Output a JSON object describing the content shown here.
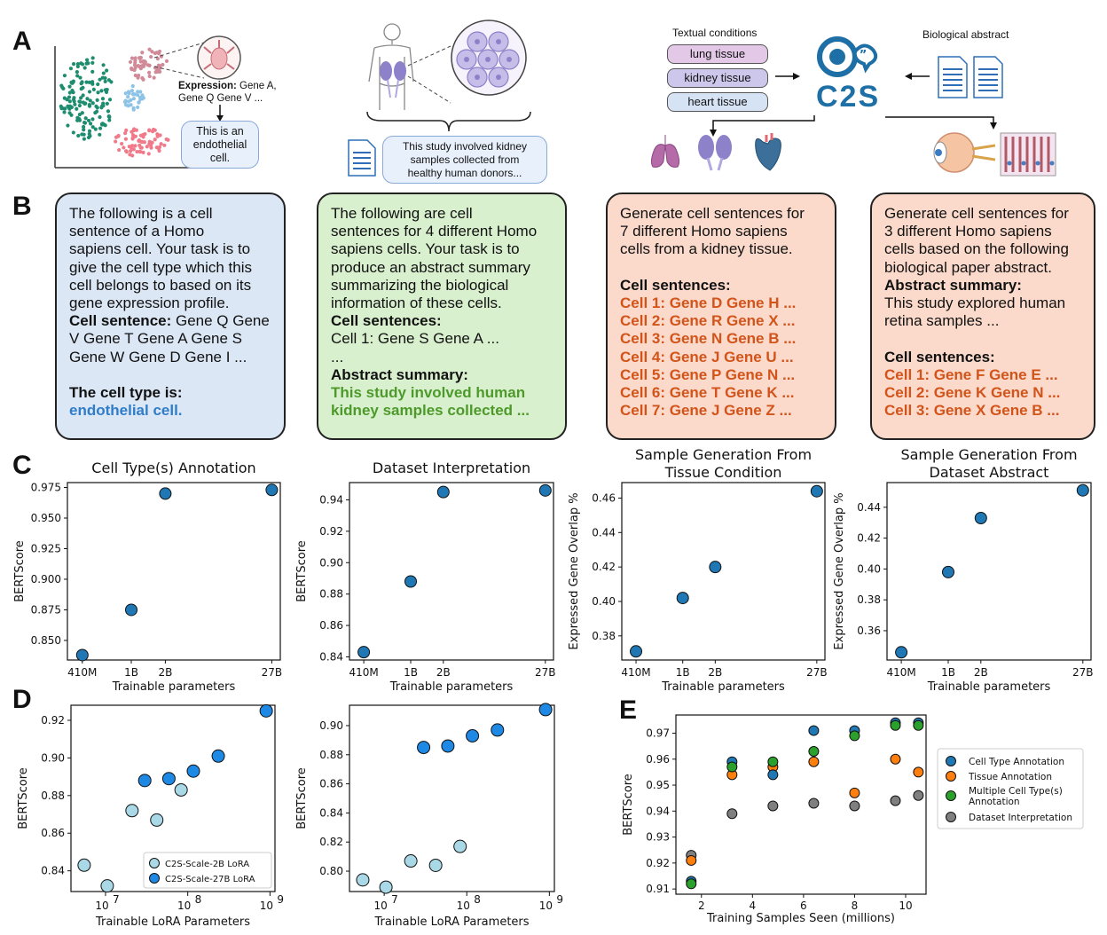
{
  "panel_letters": {
    "a": "A",
    "b": "B",
    "c": "C",
    "d": "D",
    "e": "E"
  },
  "panel_a": {
    "expression_bold": "Expression:",
    "expression_rest_1": " Gene A,",
    "expression_rest_2": "Gene Q Gene V ...",
    "cell_bubble": [
      "This is an",
      "endothelial",
      "cell."
    ],
    "study_bubble": [
      "This study involved kidney",
      "samples collected from",
      "healthy human donors..."
    ],
    "textual_conditions": "Textual conditions",
    "conditions": [
      "lung tissue",
      "kidney tissue",
      "heart tissue"
    ],
    "biological_abstract": "Biological abstract",
    "logo_text": "C2S"
  },
  "panel_b": {
    "card1": {
      "lines": [
        "The following is a cell",
        "sentence of a Homo",
        "sapiens cell. Your task is to",
        "give the cell type which this",
        "cell belongs to based on its",
        "gene expression profile."
      ],
      "cs_bold": "Cell sentence:",
      "cs_rest": " Gene Q Gene",
      "cs_lines": [
        "V Gene T Gene A Gene S",
        "Gene W Gene D Gene I ..."
      ],
      "answer_label": "The cell type is:",
      "answer": "endothelial cell."
    },
    "card2": {
      "lines": [
        "The following are cell",
        "sentences for 4 different Homo",
        "sapiens cells. Your task is to",
        "produce an abstract summary",
        "summarizing the biological",
        "information of these cells."
      ],
      "cs_label": "Cell sentences:",
      "cs_lines": [
        "Cell 1: Gene S Gene A ...",
        "..."
      ],
      "answer_label": "Abstract summary:",
      "answer": [
        "This study involved human",
        "kidney samples collected ..."
      ]
    },
    "card3": {
      "lines": [
        "Generate cell sentences for",
        "7 different Homo sapiens",
        "cells from a kidney tissue."
      ],
      "cs_label": "Cell sentences:",
      "cells": [
        "Cell 1: Gene D Gene H ...",
        "Cell 2: Gene R Gene X ...",
        "Cell 3: Gene N Gene B ...",
        "Cell 4: Gene J Gene U ...",
        "Cell 5: Gene P Gene N ...",
        "Cell 6: Gene T Gene K ...",
        "Cell 7: Gene J Gene Z ..."
      ]
    },
    "card4": {
      "lines": [
        "Generate cell sentences for",
        "3 different Homo sapiens",
        "cells based on the following",
        "biological paper abstract."
      ],
      "abs_label": "Abstract summary:",
      "abs_lines": [
        "This study explored human",
        "retina samples ..."
      ],
      "cs_label": "Cell sentences:",
      "cells": [
        "Cell 1: Gene F Gene E ...",
        "Cell 2: Gene K Gene N ...",
        "Cell 3: Gene X Gene B ..."
      ]
    }
  },
  "colors": {
    "blue_point": "#1f77b4",
    "orange": "#ff7f0e",
    "green": "#2ca02c",
    "gray": "#7f7f7f",
    "light_blue": "#a9d8e6",
    "bright_blue": "#1e88e5"
  },
  "chart_data": [
    {
      "id": "c1",
      "type": "scatter",
      "title": "Cell Type(s) Annotation",
      "xlabel": "Trainable parameters",
      "ylabel": "BERTScore",
      "categories": [
        "410M",
        "1B",
        "2B",
        "27B"
      ],
      "values": [
        0.838,
        0.875,
        0.97,
        0.973
      ],
      "yticks": [
        "0.850",
        "0.875",
        "0.900",
        "0.925",
        "0.950",
        "0.975"
      ],
      "ylim": [
        0.834,
        0.979
      ]
    },
    {
      "id": "c2",
      "type": "scatter",
      "title": "Dataset Interpretation",
      "xlabel": "Trainable parameters",
      "ylabel": "BERTScore",
      "categories": [
        "410M",
        "1B",
        "2B",
        "27B"
      ],
      "values": [
        0.843,
        0.888,
        0.945,
        0.946
      ],
      "yticks": [
        "0.84",
        "0.86",
        "0.88",
        "0.90",
        "0.92",
        "0.94"
      ],
      "ylim": [
        0.838,
        0.951
      ]
    },
    {
      "id": "c3",
      "type": "scatter",
      "title": [
        "Sample Generation From",
        "Tissue Condition"
      ],
      "xlabel": "Trainable parameters",
      "ylabel": "Expressed Gene Overlap %",
      "categories": [
        "410M",
        "1B",
        "2B",
        "27B"
      ],
      "values": [
        0.371,
        0.402,
        0.42,
        0.464
      ],
      "yticks": [
        "0.38",
        "0.40",
        "0.42",
        "0.44",
        "0.46"
      ],
      "ylim": [
        0.366,
        0.469
      ]
    },
    {
      "id": "c4",
      "type": "scatter",
      "title": [
        "Sample Generation From",
        "Dataset Abstract"
      ],
      "xlabel": "Trainable parameters",
      "ylabel": "Expressed Gene Overlap %",
      "categories": [
        "410M",
        "1B",
        "2B",
        "27B"
      ],
      "values": [
        0.346,
        0.398,
        0.433,
        0.451
      ],
      "yticks": [
        "0.36",
        "0.38",
        "0.40",
        "0.42",
        "0.44"
      ],
      "ylim": [
        0.341,
        0.456
      ]
    },
    {
      "id": "d1",
      "type": "scatter",
      "xlabel": "Trainable LoRA Parameters",
      "ylabel": "BERTScore",
      "xscale": "log",
      "xlim": [
        3800000.0,
        1150000000.0
      ],
      "xticks": [
        "7",
        "8",
        "9"
      ],
      "yticks": [
        "0.84",
        "0.86",
        "0.88",
        "0.90",
        "0.92"
      ],
      "ylim": [
        0.829,
        0.928
      ],
      "series": [
        {
          "name": "C2S-Scale-2B LoRA",
          "points": [
            [
              5500000.0,
              0.843
            ],
            [
              10500000.0,
              0.832
            ],
            [
              21000000.0,
              0.872
            ],
            [
              42000000.0,
              0.867
            ],
            [
              83000000.0,
              0.883
            ]
          ]
        },
        {
          "name": "C2S-Scale-27B LoRA",
          "points": [
            [
              30000000.0,
              0.888
            ],
            [
              59000000.0,
              0.889
            ],
            [
              117000000.0,
              0.893
            ],
            [
              235000000.0,
              0.901
            ],
            [
              900000000.0,
              0.925
            ]
          ]
        }
      ],
      "legend": "bottom-right"
    },
    {
      "id": "d2",
      "type": "scatter",
      "xlabel": "Trainable LoRA Parameters",
      "ylabel": "BERTScore",
      "xscale": "log",
      "xlim": [
        3800000.0,
        1150000000.0
      ],
      "xticks": [
        "7",
        "8",
        "9"
      ],
      "yticks": [
        "0.80",
        "0.82",
        "0.84",
        "0.86",
        "0.88",
        "0.90"
      ],
      "ylim": [
        0.786,
        0.914
      ],
      "series": [
        {
          "name": "C2S-Scale-2B LoRA",
          "points": [
            [
              5500000.0,
              0.794
            ],
            [
              10500000.0,
              0.789
            ],
            [
              21000000.0,
              0.807
            ],
            [
              42000000.0,
              0.804
            ],
            [
              83000000.0,
              0.817
            ]
          ]
        },
        {
          "name": "C2S-Scale-27B LoRA",
          "points": [
            [
              30000000.0,
              0.885
            ],
            [
              59000000.0,
              0.886
            ],
            [
              117000000.0,
              0.893
            ],
            [
              235000000.0,
              0.897
            ],
            [
              900000000.0,
              0.911
            ]
          ]
        }
      ]
    },
    {
      "id": "e",
      "type": "scatter",
      "xlabel": "Training Samples Seen (millions)",
      "ylabel": "BERTScore",
      "xlim": [
        1.0,
        10.8
      ],
      "ylim": [
        0.908,
        0.977
      ],
      "xticks": [
        "2",
        "4",
        "6",
        "8",
        "10"
      ],
      "yticks": [
        "0.91",
        "0.92",
        "0.93",
        "0.94",
        "0.95",
        "0.96",
        "0.97"
      ],
      "series": [
        {
          "name": "Cell Type Annotation",
          "points": [
            [
              1.6,
              0.913
            ],
            [
              3.2,
              0.959
            ],
            [
              4.8,
              0.954
            ],
            [
              6.4,
              0.971
            ],
            [
              8.0,
              0.971
            ],
            [
              9.6,
              0.974
            ],
            [
              10.5,
              0.974
            ]
          ]
        },
        {
          "name": "Tissue Annotation",
          "points": [
            [
              1.6,
              0.921
            ],
            [
              3.2,
              0.954
            ],
            [
              4.8,
              0.957
            ],
            [
              6.4,
              0.959
            ],
            [
              8.0,
              0.947
            ],
            [
              9.6,
              0.96
            ],
            [
              10.5,
              0.955
            ]
          ]
        },
        {
          "name": "Multiple Cell Type(s)\nAnnotation",
          "points": [
            [
              1.6,
              0.912
            ],
            [
              3.2,
              0.957
            ],
            [
              4.8,
              0.959
            ],
            [
              6.4,
              0.963
            ],
            [
              8.0,
              0.969
            ],
            [
              9.6,
              0.973
            ],
            [
              10.5,
              0.973
            ]
          ]
        },
        {
          "name": "Dataset Interpretation",
          "points": [
            [
              1.6,
              0.923
            ],
            [
              3.2,
              0.939
            ],
            [
              4.8,
              0.942
            ],
            [
              6.4,
              0.943
            ],
            [
              8.0,
              0.942
            ],
            [
              9.6,
              0.944
            ],
            [
              10.5,
              0.946
            ]
          ]
        }
      ],
      "legend": "right"
    }
  ]
}
